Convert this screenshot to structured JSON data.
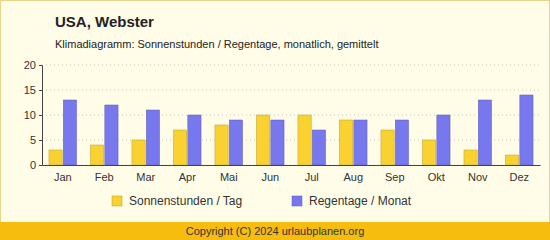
{
  "chart_data": {
    "type": "bar",
    "title": "USA, Webster",
    "subtitle": "Klimadiagramm: Sonnenstunden / Regentage, monatlich, gemittelt",
    "footer": "Copyright (C) 2024 urlaubplanen.org",
    "categories": [
      "Jan",
      "Feb",
      "Mar",
      "Apr",
      "Mai",
      "Jun",
      "Jul",
      "Aug",
      "Sep",
      "Okt",
      "Nov",
      "Dez"
    ],
    "series": [
      {
        "name": "Sonnenstunden / Tag",
        "color": "#f9d232",
        "values": [
          3,
          4,
          5,
          7,
          8,
          10,
          10,
          9,
          7,
          5,
          3,
          2
        ]
      },
      {
        "name": "Regentage / Monat",
        "color": "#7878ee",
        "values": [
          13,
          12,
          11,
          10,
          9,
          9,
          7,
          9,
          9,
          10,
          13,
          14
        ]
      }
    ],
    "ylim": [
      0,
      20
    ],
    "yticks": [
      0,
      5,
      10,
      15,
      20
    ],
    "grid": true,
    "legend": "bottom"
  }
}
